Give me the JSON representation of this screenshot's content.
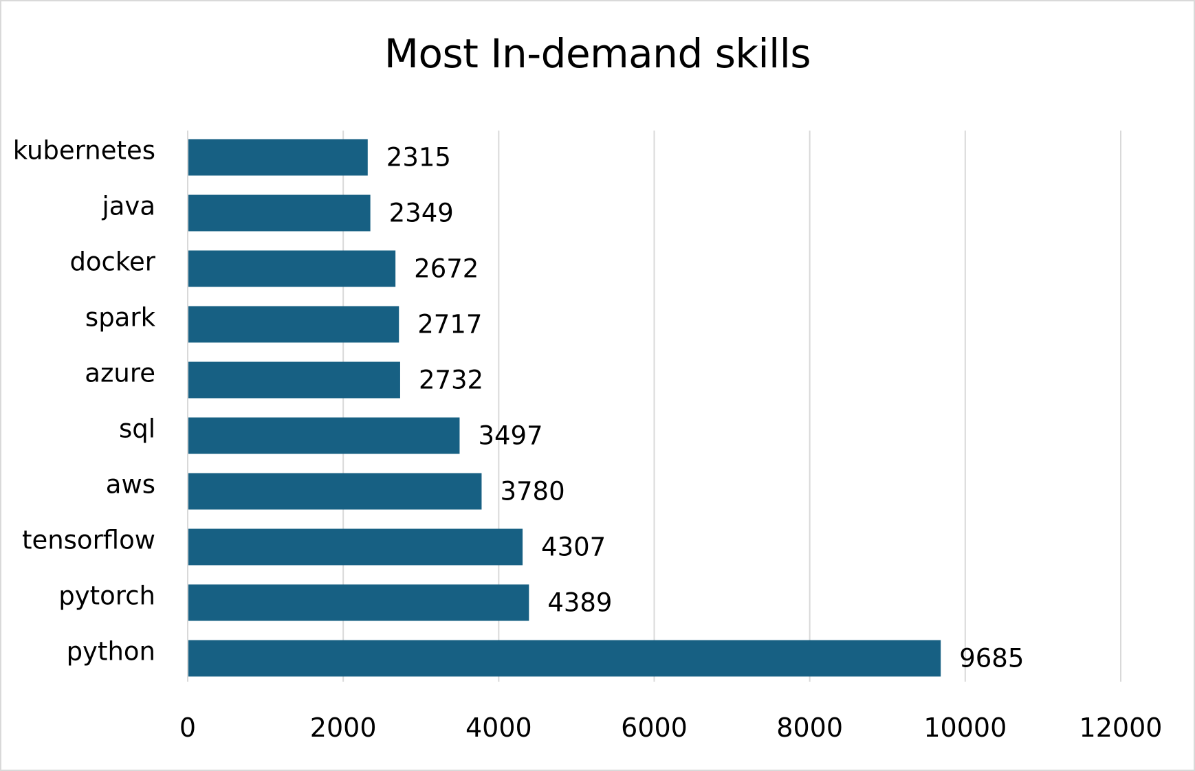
{
  "chart_data": {
    "type": "bar",
    "orientation": "horizontal",
    "title": "Most In-demand skills",
    "xlabel": "",
    "ylabel": "",
    "categories": [
      "kubernetes",
      "java",
      "docker",
      "spark",
      "azure",
      "sql",
      "aws",
      "tensorflow",
      "pytorch",
      "python"
    ],
    "values": [
      2315,
      2349,
      2672,
      2717,
      2732,
      3497,
      3780,
      4307,
      4389,
      9685
    ],
    "xlim": [
      0,
      12000
    ],
    "xticks": [
      0,
      2000,
      4000,
      6000,
      8000,
      10000,
      12000
    ],
    "grid": true,
    "legend": "none",
    "bar_color": "#176083",
    "grid_color": "#d9d9d9",
    "data_labels": true
  }
}
